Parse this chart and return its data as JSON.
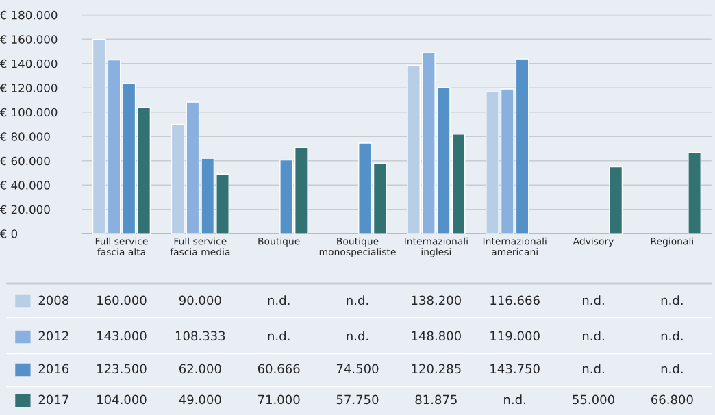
{
  "chart_data": {
    "type": "bar",
    "categories": [
      "Full service\nfascia alta",
      "Full service\nfascia media",
      "Boutique",
      "Boutique\nmonospecialiste",
      "Internazionali\ninglesi",
      "Internazionali\namericani",
      "Advisory",
      "Regionali"
    ],
    "series": [
      {
        "name": "2008",
        "color": "#b8cde6",
        "values": [
          160000,
          90000,
          null,
          null,
          138200,
          116666,
          null,
          null
        ],
        "value_labels": [
          "160.000",
          "90.000",
          "n.d.",
          "n.d.",
          "138.200",
          "116.666",
          "n.d.",
          "n.d."
        ]
      },
      {
        "name": "2012",
        "color": "#8ab0e0",
        "values": [
          143000,
          108333,
          null,
          null,
          148800,
          119000,
          null,
          null
        ],
        "value_labels": [
          "143.000",
          "108.333",
          "n.d.",
          "n.d.",
          "148.800",
          "119.000",
          "n.d.",
          "n.d."
        ]
      },
      {
        "name": "2016",
        "color": "#5591c9",
        "values": [
          123500,
          62000,
          60666,
          74500,
          120285,
          143750,
          null,
          null
        ],
        "value_labels": [
          "123.500",
          "62.000",
          "60.666",
          "74.500",
          "120.285",
          "143.750",
          "n.d.",
          "n.d."
        ]
      },
      {
        "name": "2017",
        "color": "#327273",
        "values": [
          104000,
          49000,
          71000,
          57750,
          81875,
          null,
          55000,
          66800
        ],
        "value_labels": [
          "104.000",
          "49.000",
          "71.000",
          "57.750",
          "81.875",
          "n.d.",
          "55.000",
          "66.800"
        ]
      }
    ],
    "ylim": [
      0,
      180000
    ],
    "yticks": [
      {
        "value": 0,
        "label": "€ 0"
      },
      {
        "value": 20000,
        "label": "€ 20.000"
      },
      {
        "value": 40000,
        "label": "€ 40.000"
      },
      {
        "value": 60000,
        "label": "€ 60.000"
      },
      {
        "value": 80000,
        "label": "€ 80.000"
      },
      {
        "value": 100000,
        "label": "€ 100.000"
      },
      {
        "value": 120000,
        "label": "€ 120.000"
      },
      {
        "value": 140000,
        "label": "€ 140.000"
      },
      {
        "value": 160000,
        "label": "€ 160.000"
      },
      {
        "value": 180000,
        "label": "€ 180.000"
      }
    ],
    "grid": "y",
    "legend": "bottom left"
  }
}
